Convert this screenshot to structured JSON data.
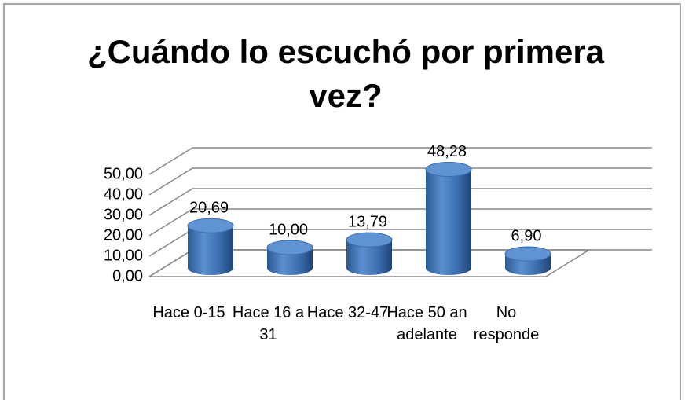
{
  "chart_data": {
    "type": "bar3d",
    "title": "¿Cuándo lo escuchó por primera vez?",
    "categories": [
      "Hace 0-15",
      "Hace 16 a 31",
      "Hace 32-47",
      "Hace 50 an adelante",
      "No responde"
    ],
    "values": [
      20.69,
      10.0,
      13.79,
      48.28,
      6.9
    ],
    "value_labels": [
      "20,69",
      "10,00",
      "13,79",
      "48,28",
      "6,90"
    ],
    "color": "#4f81bd",
    "ylim": [
      0,
      50
    ],
    "yticks": [
      {
        "value": 0,
        "label": "0,00"
      },
      {
        "value": 10,
        "label": "10,00"
      },
      {
        "value": 20,
        "label": "20,00"
      },
      {
        "value": 30,
        "label": "30,00"
      },
      {
        "value": 40,
        "label": "40,00"
      },
      {
        "value": 50,
        "label": "50,00"
      }
    ],
    "grid": true
  }
}
